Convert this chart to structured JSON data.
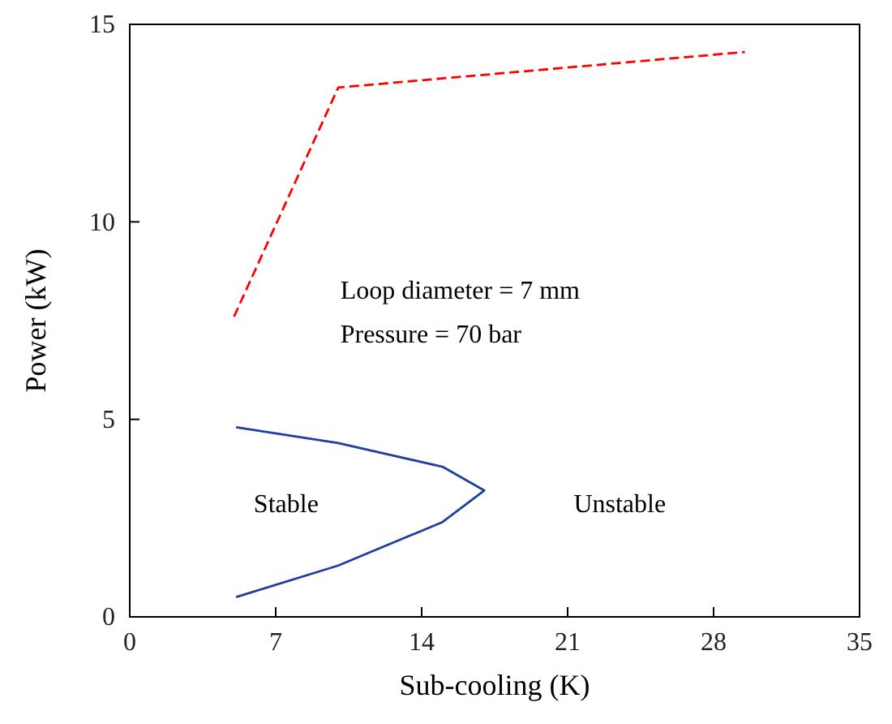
{
  "chart_data": {
    "type": "line",
    "xlabel": "Sub-cooling (K)",
    "ylabel": "Power (kW)",
    "xlim": [
      0,
      35
    ],
    "xticks": [
      0,
      7,
      14,
      21,
      28,
      35
    ],
    "ylim": [
      0,
      15
    ],
    "yticks": [
      0,
      5,
      10,
      15
    ],
    "grid": false,
    "marker": "none",
    "series": [
      {
        "color": "#ff0000",
        "line_style": "dashed",
        "x": [
          5,
          10,
          29.5
        ],
        "values": [
          7.6,
          13.4,
          14.3
        ]
      },
      {
        "color": "#1f3f9f",
        "line_style": "solid",
        "x": [
          5.1,
          10,
          15,
          17,
          15,
          10,
          5.1
        ],
        "values": [
          4.8,
          4.4,
          3.8,
          3.2,
          2.4,
          1.3,
          0.5
        ]
      }
    ],
    "annotations": [
      "Loop diameter = 7 mm",
      "Pressure = 70 bar",
      "Stable",
      "Unstable"
    ]
  }
}
